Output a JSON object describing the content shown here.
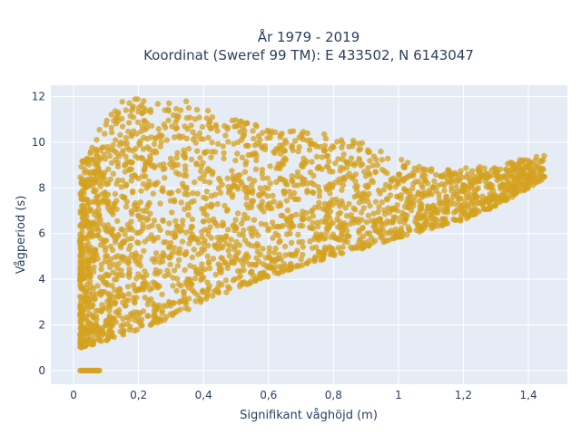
{
  "chart_data": {
    "type": "scatter",
    "title_line1": "År 1979 - 2019",
    "title_line2": "Koordinat (Sweref 99 TM): E 433502, N 6143047",
    "xlabel": "Signifikant våghöjd (m)",
    "ylabel": "Vågperiod (s)",
    "xlim": [
      -0.07,
      1.52
    ],
    "ylim": [
      -0.6,
      12.5
    ],
    "x_ticks": [
      0,
      0.2,
      0.4,
      0.6,
      0.8,
      1.0,
      1.2,
      1.4
    ],
    "x_tick_labels": [
      "0",
      "0,2",
      "0,4",
      "0,6",
      "0,8",
      "1",
      "1,2",
      "1,4"
    ],
    "y_ticks": [
      0,
      2,
      4,
      6,
      8,
      10,
      12
    ],
    "y_tick_labels": [
      "0",
      "2",
      "4",
      "6",
      "8",
      "10",
      "12"
    ],
    "grid": true,
    "marker_color": "#d4a21f",
    "plot_bg": "#e5ecf6",
    "point_count_sample": 2600,
    "x_range_data": [
      0.0,
      1.45
    ],
    "y_range_data": [
      0.0,
      12.0
    ],
    "envelope": {
      "lower_bound_points": [
        [
          0.02,
          1.0
        ],
        [
          0.1,
          1.3
        ],
        [
          0.2,
          1.8
        ],
        [
          0.3,
          2.3
        ],
        [
          0.4,
          3.0
        ],
        [
          0.5,
          3.6
        ],
        [
          0.6,
          4.1
        ],
        [
          0.7,
          4.6
        ],
        [
          0.8,
          5.0
        ],
        [
          0.9,
          5.4
        ],
        [
          1.0,
          5.8
        ],
        [
          1.1,
          6.2
        ],
        [
          1.2,
          6.6
        ],
        [
          1.3,
          7.2
        ],
        [
          1.45,
          8.4
        ]
      ],
      "upper_bound_points": [
        [
          0.02,
          9.0
        ],
        [
          0.08,
          10.6
        ],
        [
          0.15,
          11.9
        ],
        [
          0.25,
          12.0
        ],
        [
          0.35,
          11.8
        ],
        [
          0.45,
          11.2
        ],
        [
          0.55,
          10.8
        ],
        [
          0.65,
          10.6
        ],
        [
          0.75,
          10.4
        ],
        [
          0.85,
          10.2
        ],
        [
          0.95,
          9.6
        ],
        [
          1.05,
          9.0
        ],
        [
          1.15,
          8.8
        ],
        [
          1.3,
          9.0
        ],
        [
          1.45,
          9.5
        ]
      ],
      "zero_period_cluster": {
        "x_range": [
          0.02,
          0.08
        ],
        "y": 0
      }
    }
  }
}
